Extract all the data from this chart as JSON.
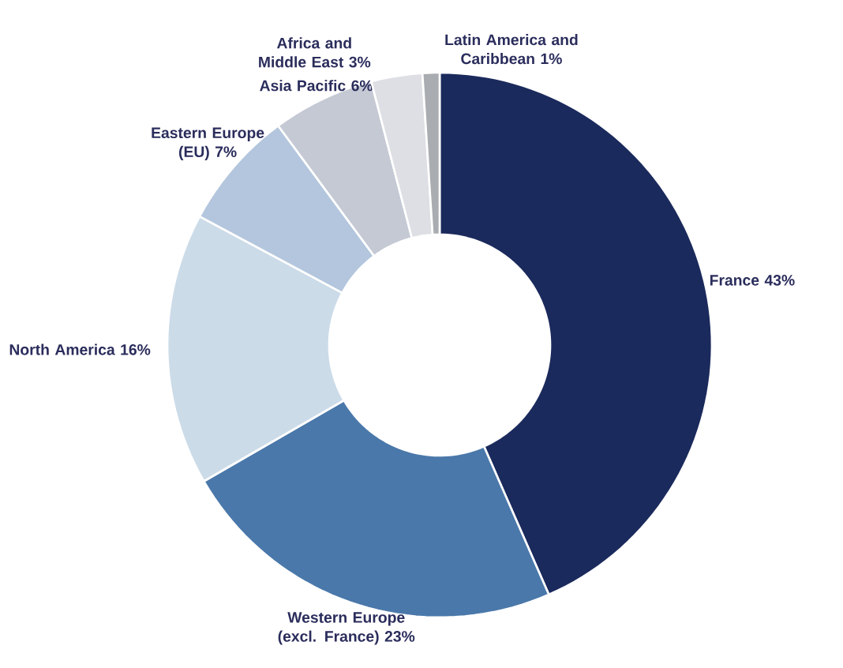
{
  "chart_data": {
    "type": "donut",
    "categories": [
      "France",
      "Western Europe (excl. France)",
      "North America",
      "Eastern Europe (EU)",
      "Asia Pacific",
      "Africa and Middle East",
      "Latin America and Caribbean"
    ],
    "values": [
      43,
      23,
      16,
      7,
      6,
      3,
      1
    ],
    "value_labels": [
      "43%",
      "23%",
      "16%",
      "7%",
      "6%",
      "3%",
      "1%"
    ],
    "colors": [
      "#1b2a5c",
      "#4a78aa",
      "#ccdbe8",
      "#b3c6dd",
      "#c4c9d4",
      "#dddfe4",
      "#a9acb0"
    ]
  }
}
